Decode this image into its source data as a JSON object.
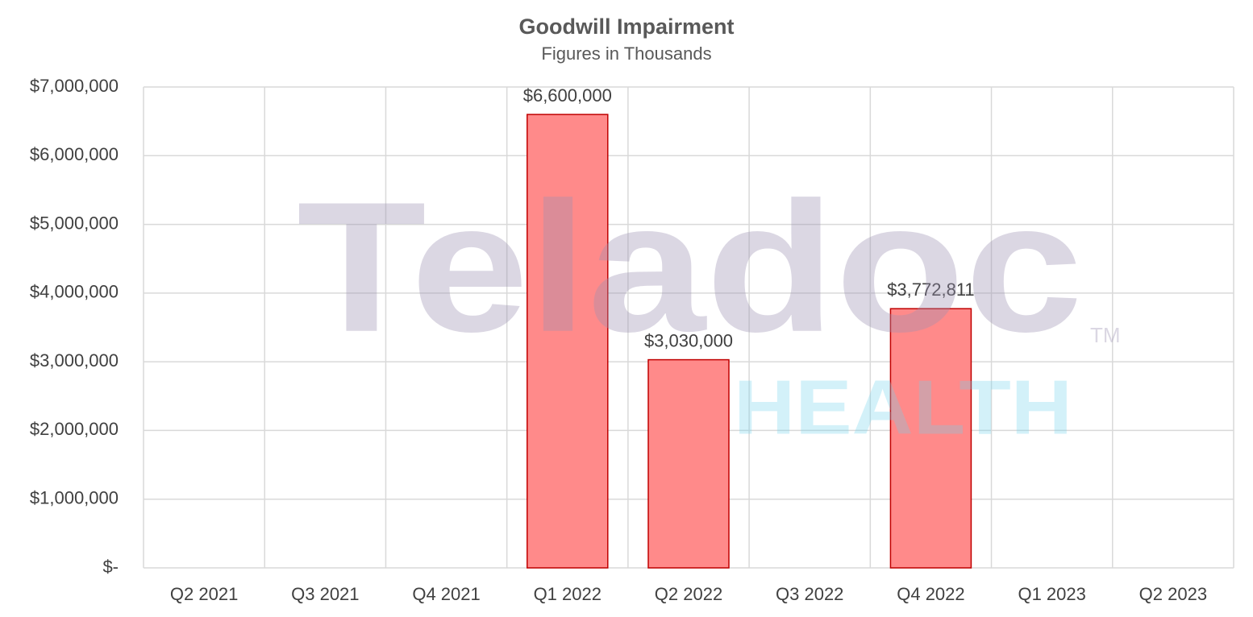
{
  "chart_data": {
    "type": "bar",
    "title": "Goodwill Impairment",
    "subtitle": "Figures in Thousands",
    "categories": [
      "Q2 2021",
      "Q3 2021",
      "Q4 2021",
      "Q1 2022",
      "Q2 2022",
      "Q3 2022",
      "Q4 2022",
      "Q1 2023",
      "Q2 2023"
    ],
    "values": [
      null,
      null,
      null,
      6600000,
      3030000,
      null,
      3772811,
      null,
      null
    ],
    "value_labels": [
      null,
      null,
      null,
      "$6,600,000",
      "$3,030,000",
      null,
      "$3,772,811",
      null,
      null
    ],
    "color": "#ff8a8a",
    "edge_color": "#c00000",
    "ylim": [
      0,
      7000000
    ],
    "yticks": [
      {
        "value": 0,
        "label": "$-"
      },
      {
        "value": 1000000,
        "label": "$1,000,000"
      },
      {
        "value": 2000000,
        "label": "$2,000,000"
      },
      {
        "value": 3000000,
        "label": "$3,000,000"
      },
      {
        "value": 4000000,
        "label": "$4,000,000"
      },
      {
        "value": 5000000,
        "label": "$5,000,000"
      },
      {
        "value": 6000000,
        "label": "$6,000,000"
      },
      {
        "value": 7000000,
        "label": "$7,000,000"
      }
    ],
    "grid": true,
    "watermark": {
      "name": "Teladoc",
      "sub": "HEALTH",
      "mark": "TM"
    }
  }
}
